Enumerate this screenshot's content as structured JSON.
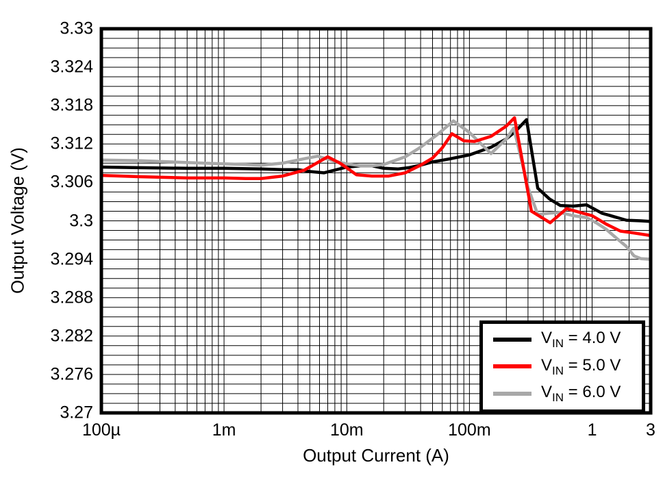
{
  "chart_data": {
    "type": "line",
    "title": "",
    "xlabel": "Output Current (A)",
    "ylabel": "Output Voltage (V)",
    "x_scale": "log",
    "xlim": [
      0.0001,
      3
    ],
    "ylim": [
      3.27,
      3.33
    ],
    "y_minor_step": 0.0015,
    "grid": true,
    "grid_color": "#000000",
    "border_color": "#000000",
    "x_ticks": [
      {
        "value": 0.0001,
        "label": "100µ"
      },
      {
        "value": 0.001,
        "label": "1m"
      },
      {
        "value": 0.01,
        "label": "10m"
      },
      {
        "value": 0.1,
        "label": "100m"
      },
      {
        "value": 1,
        "label": "1"
      },
      {
        "value": 3,
        "label": "3"
      }
    ],
    "y_ticks": [
      {
        "value": 3.33,
        "label": "3.33"
      },
      {
        "value": 3.324,
        "label": "3.324"
      },
      {
        "value": 3.318,
        "label": "3.318"
      },
      {
        "value": 3.312,
        "label": "3.312"
      },
      {
        "value": 3.306,
        "label": "3.306"
      },
      {
        "value": 3.3,
        "label": "3.3"
      },
      {
        "value": 3.294,
        "label": "3.294"
      },
      {
        "value": 3.288,
        "label": "3.288"
      },
      {
        "value": 3.282,
        "label": "3.282"
      },
      {
        "value": 3.276,
        "label": "3.276"
      },
      {
        "value": 3.27,
        "label": "3.27"
      }
    ],
    "legend": {
      "position": "bottom-right",
      "entries": [
        {
          "id": "vin-4v",
          "name": "VIN = 4.0 V",
          "label_prefix": "V",
          "label_sub": "IN",
          "label_rest": " = 4.0 V",
          "color": "#000000"
        },
        {
          "id": "vin-5v",
          "name": "VIN = 5.0 V",
          "label_prefix": "V",
          "label_sub": "IN",
          "label_rest": " = 5.0 V",
          "color": "#ff0000"
        },
        {
          "id": "vin-6v",
          "name": "VIN = 6.0 V",
          "label_prefix": "V",
          "label_sub": "IN",
          "label_rest": " = 6.0 V",
          "color": "#a8a8a8"
        }
      ]
    },
    "series": [
      {
        "id": "vin-4v",
        "name": "VIN = 4.0 V",
        "color": "#000000",
        "z": 1,
        "points": [
          [
            0.0001,
            3.3084
          ],
          [
            0.0002,
            3.3083
          ],
          [
            0.0005,
            3.3082
          ],
          [
            0.001,
            3.3082
          ],
          [
            0.002,
            3.3081
          ],
          [
            0.003,
            3.308
          ],
          [
            0.004,
            3.308
          ],
          [
            0.005,
            3.3077
          ],
          [
            0.0065,
            3.3075
          ],
          [
            0.01,
            3.3084
          ],
          [
            0.013,
            3.3086
          ],
          [
            0.016,
            3.3086
          ],
          [
            0.02,
            3.3082
          ],
          [
            0.026,
            3.3081
          ],
          [
            0.032,
            3.3083
          ],
          [
            0.04,
            3.3087
          ],
          [
            0.05,
            3.3092
          ],
          [
            0.07,
            3.3097
          ],
          [
            0.1,
            3.3103
          ],
          [
            0.15,
            3.3115
          ],
          [
            0.2,
            3.3128
          ],
          [
            0.235,
            3.3139
          ],
          [
            0.292,
            3.3158
          ],
          [
            0.36,
            3.3051
          ],
          [
            0.45,
            3.3034
          ],
          [
            0.55,
            3.3024
          ],
          [
            0.7,
            3.3023
          ],
          [
            0.9,
            3.3025
          ],
          [
            1.2,
            3.3012
          ],
          [
            1.9,
            3.3001
          ],
          [
            2.5,
            3.3
          ],
          [
            3.0,
            3.2999
          ]
        ]
      },
      {
        "id": "vin-6v",
        "name": "VIN = 6.0 V",
        "color": "#a8a8a8",
        "z": 2,
        "points": [
          [
            0.0001,
            3.3095
          ],
          [
            0.0002,
            3.3094
          ],
          [
            0.0005,
            3.3091
          ],
          [
            0.001,
            3.3089
          ],
          [
            0.0015,
            3.3088
          ],
          [
            0.002,
            3.3087
          ],
          [
            0.003,
            3.309
          ],
          [
            0.0045,
            3.3097
          ],
          [
            0.0058,
            3.3101
          ],
          [
            0.008,
            3.3093
          ],
          [
            0.01,
            3.3089
          ],
          [
            0.013,
            3.3086
          ],
          [
            0.016,
            3.3086
          ],
          [
            0.02,
            3.3088
          ],
          [
            0.03,
            3.31
          ],
          [
            0.04,
            3.3115
          ],
          [
            0.055,
            3.3135
          ],
          [
            0.074,
            3.3156
          ],
          [
            0.1,
            3.3138
          ],
          [
            0.15,
            3.3105
          ],
          [
            0.2,
            3.3128
          ],
          [
            0.23,
            3.3145
          ],
          [
            0.3,
            3.3052
          ],
          [
            0.36,
            3.301
          ],
          [
            0.45,
            3.3012
          ],
          [
            0.55,
            3.3013
          ],
          [
            0.7,
            3.3008
          ],
          [
            0.9,
            3.3005
          ],
          [
            1.1,
            3.2996
          ],
          [
            1.3,
            3.2987
          ],
          [
            1.6,
            3.2972
          ],
          [
            1.9,
            3.296
          ],
          [
            2.2,
            3.2945
          ],
          [
            2.5,
            3.2941
          ],
          [
            3.0,
            3.294
          ]
        ]
      },
      {
        "id": "vin-5v",
        "name": "VIN = 5.0 V",
        "color": "#ff0000",
        "z": 3,
        "points": [
          [
            0.0001,
            3.3071
          ],
          [
            0.0002,
            3.3069
          ],
          [
            0.0005,
            3.3067
          ],
          [
            0.001,
            3.3067
          ],
          [
            0.0015,
            3.3066
          ],
          [
            0.002,
            3.3066
          ],
          [
            0.003,
            3.307
          ],
          [
            0.0045,
            3.3079
          ],
          [
            0.007,
            3.31
          ],
          [
            0.009,
            3.3089
          ],
          [
            0.012,
            3.3072
          ],
          [
            0.016,
            3.307
          ],
          [
            0.022,
            3.307
          ],
          [
            0.03,
            3.3075
          ],
          [
            0.04,
            3.3087
          ],
          [
            0.05,
            3.3098
          ],
          [
            0.06,
            3.3114
          ],
          [
            0.072,
            3.3136
          ],
          [
            0.09,
            3.3125
          ],
          [
            0.11,
            3.3124
          ],
          [
            0.15,
            3.3132
          ],
          [
            0.2,
            3.3148
          ],
          [
            0.233,
            3.3161
          ],
          [
            0.32,
            3.3015
          ],
          [
            0.455,
            3.2997
          ],
          [
            0.62,
            3.3019
          ],
          [
            0.8,
            3.3013
          ],
          [
            1.0,
            3.3008
          ],
          [
            1.3,
            3.2995
          ],
          [
            1.7,
            3.2984
          ],
          [
            2.2,
            3.2981
          ],
          [
            3.0,
            3.2977
          ]
        ]
      }
    ]
  }
}
